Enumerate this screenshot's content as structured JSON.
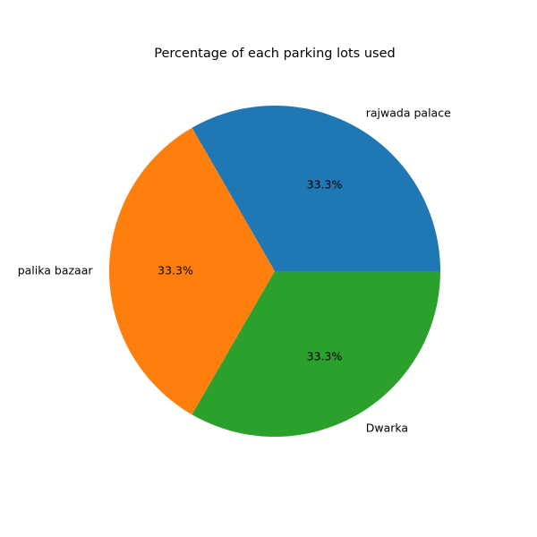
{
  "chart_data": {
    "type": "pie",
    "title": "Percentage of each parking lots used",
    "labels": [
      "rajwada palace",
      "palika bazaar",
      "Dwarka"
    ],
    "values": [
      1,
      1,
      1
    ],
    "percent_labels": [
      "33.3%",
      "33.3%",
      "33.3%"
    ],
    "colors": [
      "#1f77b4",
      "#ff7f0e",
      "#2ca02c"
    ],
    "start_angle_deg": 0,
    "direction": "counterclockwise",
    "legend": "none"
  }
}
